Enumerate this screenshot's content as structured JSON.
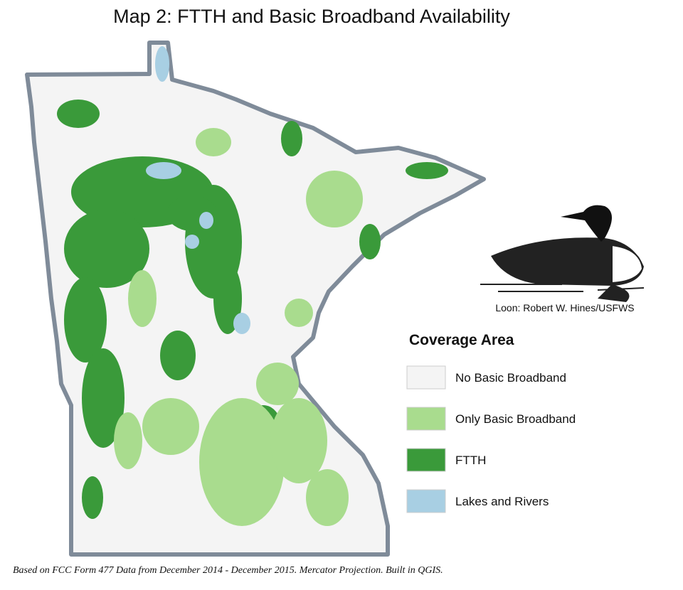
{
  "title": "Map 2: FTTH and Basic Broadband Availability",
  "credit": "Loon: Robert W. Hines/USFWS",
  "legend": {
    "title": "Coverage Area",
    "items": [
      {
        "label": "No Basic Broadband",
        "color": "#f4f4f4"
      },
      {
        "label": "Only Basic Broadband",
        "color": "#a9dc8e"
      },
      {
        "label": "FTTH",
        "color": "#3a9a3a"
      },
      {
        "label": "Lakes and Rivers",
        "color": "#a8cfe3"
      }
    ]
  },
  "footnote": "Based on FCC Form 477 Data from December 2014 - December 2015. Mercator Projection. Built in QGIS."
}
